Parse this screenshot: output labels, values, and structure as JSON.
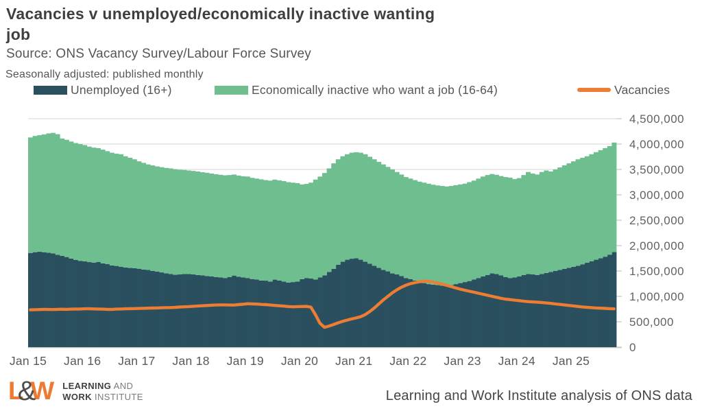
{
  "header": {
    "title_line1": "Vacancies v unemployed/economically inactive wanting",
    "title_line2": "job",
    "source": "Source: ONS Vacancy Survey/Labour Force Survey",
    "subtitle": "Seasonally adjusted: published monthly"
  },
  "legend": [
    {
      "label": "Unemployed (16+)",
      "color": "#2A4F5E",
      "swatch": "box"
    },
    {
      "label": "Economically inactive who want a job (16-64)",
      "color": "#6FBE90",
      "swatch": "box"
    },
    {
      "label": "Vacancies",
      "color": "#EB7D34",
      "swatch": "line"
    }
  ],
  "colors": {
    "unemployed": "#2A4F5E",
    "inactive_want_job": "#6FBE90",
    "vacancies_line": "#EB7D34",
    "gridline": "#DDDDDD",
    "axis_line": "#C9C9C9",
    "axis_text": "#616161",
    "title_text": "#3F3F3F",
    "logo_orange": "#EC7A33"
  },
  "chart_data": {
    "type": "combo_stacked_bar_line",
    "title": "Vacancies v unemployed/economically inactive wanting job",
    "x_start": "2015-01",
    "x_end": "2025-10",
    "x_frequency": "monthly",
    "x_tick_labels": [
      "Jan 15",
      "Jan 16",
      "Jan 17",
      "Jan 18",
      "Jan 19",
      "Jan 20",
      "Jan 21",
      "Jan 22",
      "Jan 23",
      "Jan 24",
      "Jan 25"
    ],
    "units": "thousands of people / vacancies",
    "ylim": [
      0,
      4500000
    ],
    "y_tick_interval": 500000,
    "y_tick_labels": [
      "0",
      "500,000",
      "1,000,000",
      "1,500,000",
      "2,000,000",
      "2,500,000",
      "3,000,000",
      "3,500,000",
      "4,000,000",
      "4,500,000"
    ],
    "grid": "horizontal",
    "legend_position": "top",
    "series": [
      {
        "name": "Unemployed (16+)",
        "type": "bar-stack",
        "color": "#2A4F5E",
        "values_thousands": [
          1855,
          1870,
          1880,
          1870,
          1860,
          1845,
          1820,
          1800,
          1775,
          1745,
          1720,
          1700,
          1690,
          1675,
          1665,
          1680,
          1650,
          1635,
          1610,
          1600,
          1585,
          1570,
          1560,
          1555,
          1545,
          1530,
          1520,
          1500,
          1490,
          1472,
          1455,
          1442,
          1425,
          1432,
          1440,
          1442,
          1432,
          1420,
          1412,
          1402,
          1392,
          1382,
          1372,
          1362,
          1382,
          1410,
          1385,
          1372,
          1362,
          1342,
          1332,
          1312,
          1310,
          1292,
          1330,
          1312,
          1292,
          1272,
          1282,
          1292,
          1340,
          1362,
          1352,
          1332,
          1372,
          1412,
          1482,
          1542,
          1622,
          1682,
          1722,
          1742,
          1752,
          1722,
          1682,
          1642,
          1602,
          1562,
          1522,
          1492,
          1452,
          1432,
          1402,
          1362,
          1342,
          1312,
          1282,
          1262,
          1242,
          1232,
          1222,
          1212,
          1202,
          1222,
          1242,
          1262,
          1282,
          1302,
          1332,
          1362,
          1392,
          1422,
          1452,
          1442,
          1412,
          1382,
          1362,
          1372,
          1392,
          1422,
          1442,
          1432,
          1422,
          1442,
          1462,
          1482,
          1502,
          1522,
          1542,
          1562,
          1582,
          1602,
          1632,
          1662,
          1692,
          1722,
          1752,
          1782,
          1822,
          1872
        ]
      },
      {
        "name": "Economically inactive who want a job (16-64)",
        "type": "bar-stack",
        "color": "#6FBE90",
        "values_thousands": [
          2275,
          2290,
          2295,
          2320,
          2350,
          2375,
          2375,
          2310,
          2310,
          2305,
          2300,
          2300,
          2290,
          2275,
          2265,
          2240,
          2240,
          2225,
          2220,
          2210,
          2215,
          2190,
          2170,
          2145,
          2115,
          2100,
          2080,
          2080,
          2070,
          2073,
          2075,
          2078,
          2080,
          2063,
          2050,
          2038,
          2038,
          2040,
          2033,
          2033,
          2028,
          2023,
          2023,
          2023,
          2008,
          1990,
          1995,
          1993,
          1998,
          1993,
          1988,
          1993,
          1980,
          1988,
          1970,
          1973,
          1978,
          1978,
          1958,
          1938,
          1865,
          1853,
          1888,
          1968,
          1988,
          2018,
          2038,
          2078,
          2078,
          2078,
          2078,
          2088,
          2088,
          2108,
          2118,
          2108,
          2098,
          2088,
          2078,
          2058,
          2048,
          2018,
          1998,
          1988,
          1978,
          1978,
          1978,
          1978,
          1978,
          1968,
          1963,
          1963,
          1963,
          1953,
          1948,
          1943,
          1938,
          1948,
          1948,
          1958,
          1968,
          1968,
          1958,
          1953,
          1958,
          1968,
          1978,
          1938,
          1938,
          1968,
          2008,
          1988,
          1978,
          2008,
          2018,
          1978,
          1998,
          2018,
          2038,
          2058,
          2078,
          2098,
          2098,
          2098,
          2108,
          2118,
          2128,
          2138,
          2138,
          2158
        ]
      },
      {
        "name": "Vacancies",
        "type": "line",
        "color": "#EB7D34",
        "values_thousands": [
          735,
          738,
          741,
          744,
          742,
          740,
          744,
          747,
          745,
          748,
          750,
          752,
          755,
          757,
          753,
          750,
          748,
          745,
          743,
          748,
          752,
          755,
          758,
          760,
          762,
          765,
          768,
          770,
          772,
          775,
          778,
          780,
          784,
          790,
          795,
          798,
          805,
          810,
          815,
          820,
          825,
          830,
          832,
          833,
          830,
          828,
          838,
          845,
          855,
          852,
          848,
          842,
          838,
          830,
          822,
          815,
          808,
          800,
          795,
          798,
          800,
          803,
          788,
          640,
          470,
          390,
          415,
          445,
          478,
          508,
          532,
          556,
          575,
          600,
          640,
          700,
          770,
          850,
          930,
          1000,
          1070,
          1130,
          1180,
          1220,
          1250,
          1270,
          1288,
          1300,
          1295,
          1282,
          1262,
          1242,
          1218,
          1192,
          1168,
          1142,
          1122,
          1102,
          1082,
          1062,
          1042,
          1022,
          1002,
          982,
          962,
          946,
          936,
          926,
          916,
          906,
          896,
          890,
          886,
          880,
          870,
          862,
          852,
          842,
          832,
          822,
          812,
          802,
          792,
          784,
          778,
          772,
          768,
          763,
          758,
          755
        ]
      }
    ]
  },
  "footer": {
    "logo": {
      "l": "L",
      "amp": "&",
      "w": "W",
      "line1_bold": "LEARNING",
      "line1_light": " AND",
      "line2_bold": "WORK",
      "line2_light": " INSTITUTE"
    },
    "credit": "Learning and Work Institute analysis of ONS data"
  }
}
